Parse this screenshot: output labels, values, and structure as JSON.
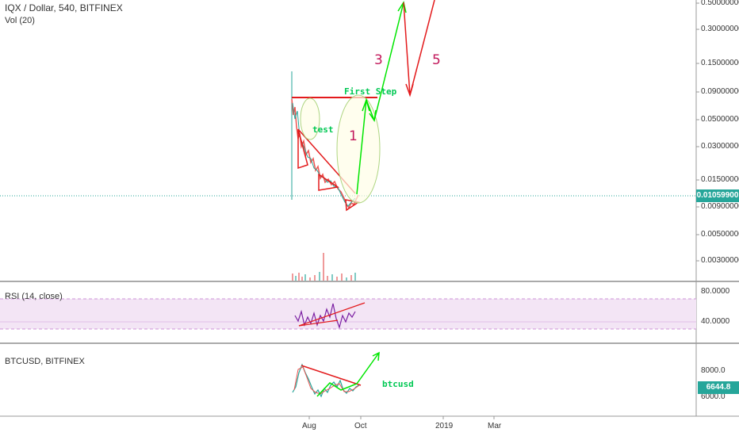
{
  "header": {
    "symbol_title": "IQX / Dollar, 540, BITFINEX",
    "volume_label": "Vol (20)"
  },
  "price_axis": {
    "ticks": [
      "0.50000000",
      "0.30000000",
      "0.15000000",
      "0.09000000",
      "0.05000000",
      "0.03000000",
      "0.01500000",
      "0.00900000",
      "0.00500000",
      "0.00300000"
    ],
    "current_price": "0.01059900"
  },
  "rsi_panel": {
    "label": "RSI (14, close)",
    "ticks": [
      "80.0000",
      "40.0000"
    ]
  },
  "btc_panel": {
    "label": "BTCUSD, BITFINEX",
    "ticks": [
      "8000.0",
      "6000.0"
    ],
    "current_price": "6644.8"
  },
  "time_axis": {
    "ticks": [
      "Aug",
      "Oct",
      "2019",
      "Mar"
    ]
  },
  "annotations": {
    "first_step": "First Step",
    "test": "test",
    "btcusd": "btcusd",
    "wave_1": "1",
    "wave_3": "3",
    "wave_5": "5"
  },
  "colors": {
    "up": "#26a69a",
    "down": "#ef5350",
    "annotation_green": "#00e600",
    "annotation_red": "#e31a1c",
    "wave_label": "#c2185b",
    "rsi_line": "#7b1fa2",
    "rsi_band": "#f3e5f5"
  }
}
